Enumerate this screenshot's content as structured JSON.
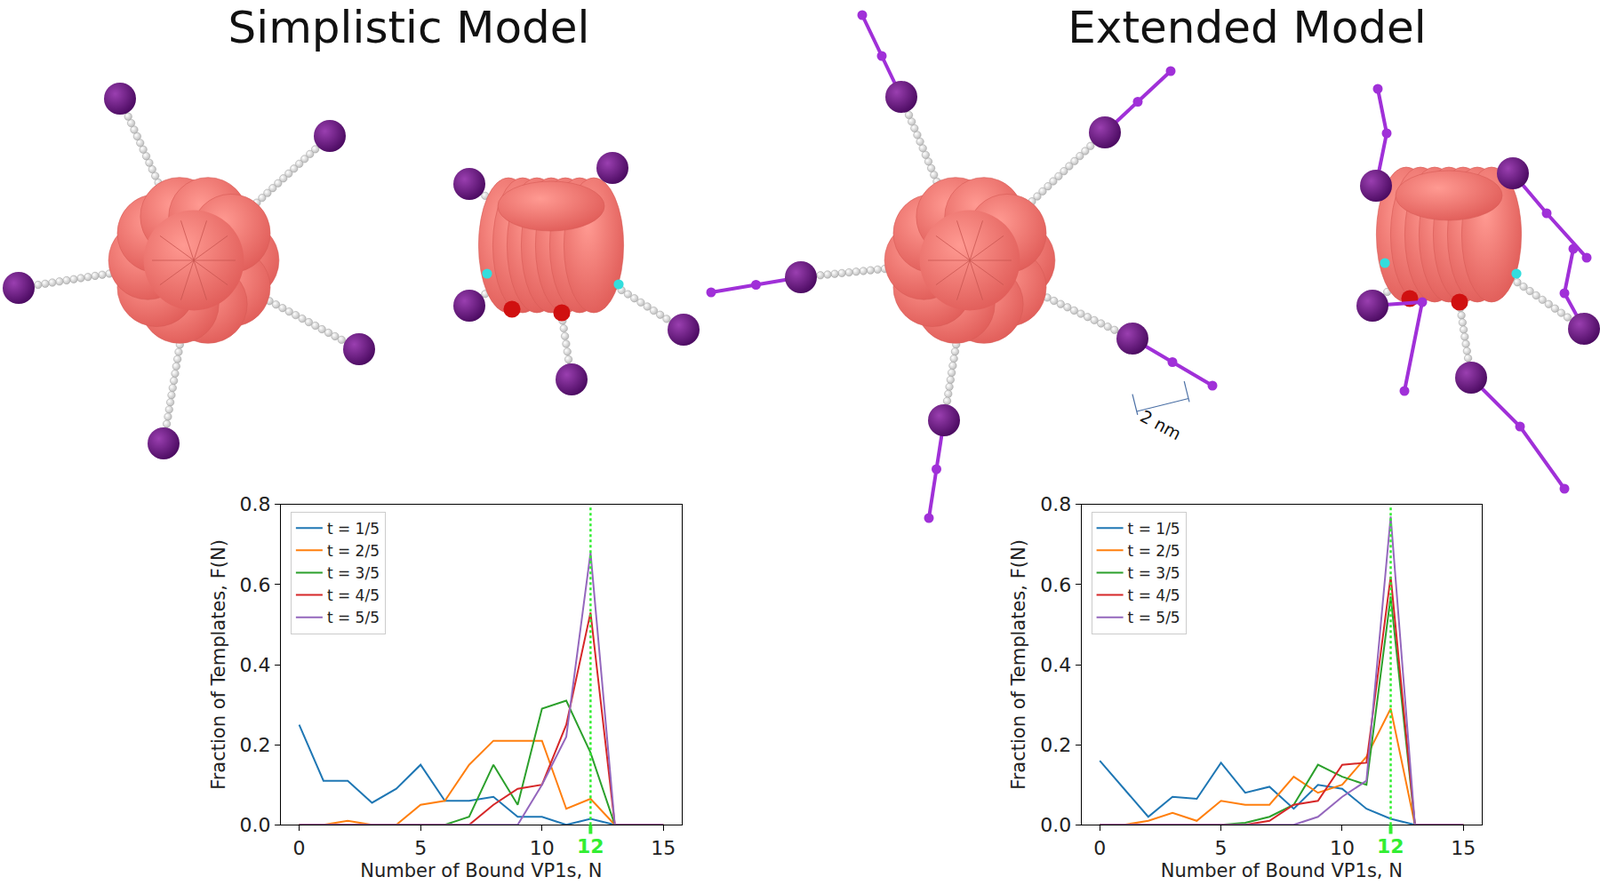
{
  "titles": [
    "Simplistic Model",
    "Extended Model"
  ],
  "scale_label": "2 nm",
  "chart_data": [
    {
      "type": "line",
      "x_label": "Number of Bound VP1s, N",
      "y_label": "Fraction of Templates, F(N)",
      "x": [
        0,
        1,
        2,
        3,
        4,
        5,
        6,
        7,
        8,
        9,
        10,
        11,
        12,
        13,
        14,
        15
      ],
      "series": [
        {
          "name": "t = 1/5",
          "color": "#1f77b4",
          "values": [
            0.25,
            0.11,
            0.11,
            0.055,
            0.09,
            0.15,
            0.06,
            0.06,
            0.07,
            0.02,
            0.02,
            0.0,
            0.015,
            0.0,
            0.0,
            0.0
          ]
        },
        {
          "name": "t = 2/5",
          "color": "#ff7f0e",
          "values": [
            0.0,
            0.0,
            0.01,
            0.0,
            0.0,
            0.05,
            0.06,
            0.15,
            0.21,
            0.21,
            0.21,
            0.04,
            0.065,
            0.0,
            0.0,
            0.0
          ]
        },
        {
          "name": "t = 3/5",
          "color": "#2ca02c",
          "values": [
            0.0,
            0.0,
            0.0,
            0.0,
            0.0,
            0.0,
            0.0,
            0.02,
            0.15,
            0.05,
            0.29,
            0.31,
            0.18,
            0.0,
            0.0,
            0.0
          ]
        },
        {
          "name": "t = 4/5",
          "color": "#d62728",
          "values": [
            0.0,
            0.0,
            0.0,
            0.0,
            0.0,
            0.0,
            0.0,
            0.0,
            0.05,
            0.09,
            0.1,
            0.25,
            0.53,
            0.0,
            0.0,
            0.0
          ]
        },
        {
          "name": "t = 5/5",
          "color": "#9467bd",
          "values": [
            0.0,
            0.0,
            0.0,
            0.0,
            0.0,
            0.0,
            0.0,
            0.0,
            0.0,
            0.0,
            0.1,
            0.22,
            0.68,
            0.0,
            0.0,
            0.0
          ]
        }
      ],
      "xlim": [
        -0.75,
        15.75
      ],
      "ylim": [
        0,
        0.8
      ],
      "xticks": [
        0,
        5,
        10,
        15
      ],
      "yticks": [
        {
          "value": 0,
          "label": "0.0"
        },
        0.2,
        0.4,
        0.6,
        0.8
      ],
      "grid": false,
      "legend": "upper left",
      "reference_line": {
        "x": 12,
        "label": "12",
        "color": "#33ee33",
        "line_style": "dotted"
      }
    },
    {
      "type": "line",
      "x_label": "Number of Bound VP1s, N",
      "y_label": "Fraction of Templates, F(N)",
      "x": [
        0,
        1,
        2,
        3,
        4,
        5,
        6,
        7,
        8,
        9,
        10,
        11,
        12,
        13,
        14,
        15
      ],
      "series": [
        {
          "name": "t = 1/5",
          "color": "#1f77b4",
          "values": [
            0.16,
            0.09,
            0.02,
            0.07,
            0.065,
            0.155,
            0.08,
            0.095,
            0.04,
            0.1,
            0.09,
            0.04,
            0.015,
            0.0,
            0.0,
            0.0
          ]
        },
        {
          "name": "t = 2/5",
          "color": "#ff7f0e",
          "values": [
            0.0,
            0.0,
            0.01,
            0.03,
            0.01,
            0.06,
            0.05,
            0.05,
            0.12,
            0.08,
            0.1,
            0.17,
            0.29,
            0.0,
            0.0,
            0.0
          ]
        },
        {
          "name": "t = 3/5",
          "color": "#2ca02c",
          "values": [
            0.0,
            0.0,
            0.0,
            0.0,
            0.0,
            0.0,
            0.005,
            0.02,
            0.05,
            0.15,
            0.12,
            0.1,
            0.57,
            0.0,
            0.0,
            0.0
          ]
        },
        {
          "name": "t = 4/5",
          "color": "#d62728",
          "values": [
            0.0,
            0.0,
            0.0,
            0.0,
            0.0,
            0.0,
            0.0,
            0.01,
            0.05,
            0.06,
            0.15,
            0.155,
            0.62,
            0.0,
            0.0,
            0.0
          ]
        },
        {
          "name": "t = 5/5",
          "color": "#9467bd",
          "values": [
            0.0,
            0.0,
            0.0,
            0.0,
            0.0,
            0.0,
            0.0,
            0.0,
            0.0,
            0.02,
            0.07,
            0.11,
            0.77,
            0.0,
            0.0,
            0.0
          ]
        }
      ],
      "xlim": [
        -0.75,
        15.75
      ],
      "ylim": [
        0,
        0.8
      ],
      "xticks": [
        0,
        5,
        10,
        15
      ],
      "yticks": [
        {
          "value": 0,
          "label": "0.0"
        },
        0.2,
        0.4,
        0.6,
        0.8
      ],
      "grid": false,
      "legend": "upper left",
      "reference_line": {
        "x": 12,
        "label": "12",
        "color": "#33ee33",
        "line_style": "dotted"
      }
    }
  ]
}
